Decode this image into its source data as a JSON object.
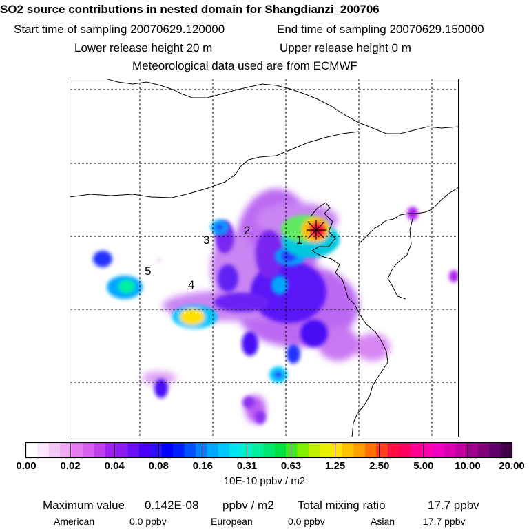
{
  "header": {
    "title": "SO2 source contributions in nested domain for Shangdianzi_200706",
    "start_time": "Start time of sampling 20070629.120000",
    "end_time": "End time of sampling 20070629.150000",
    "lower_height": "Lower release height   20 m",
    "upper_height": "Upper release height    0 m",
    "met_source": "Meteorological data used are from ECMWF"
  },
  "map": {
    "station_marker": "station-marker-icon",
    "source_labels": [
      "1",
      "2",
      "3",
      "4",
      "5"
    ]
  },
  "colorbar": {
    "ticks": [
      "0.00",
      "0.02",
      "0.04",
      "0.08",
      "0.16",
      "0.31",
      "0.63",
      "1.25",
      "2.50",
      "5.00",
      "10.00",
      "20.00"
    ],
    "colors": [
      "#ffffff",
      "#fbe6fb",
      "#f4c8f6",
      "#eeaaf2",
      "#e47cf0",
      "#d860f0",
      "#c040f0",
      "#a020f0",
      "#8a1cf2",
      "#6a10f2",
      "#4a00f8",
      "#3010f8",
      "#0000ff",
      "#0020ff",
      "#0050ff",
      "#0080ff",
      "#00a6ff",
      "#00c8ff",
      "#00e6f0",
      "#00f0c8",
      "#00f0a0",
      "#00e870",
      "#00e040",
      "#40e820",
      "#80f000",
      "#c0f000",
      "#e8f000",
      "#ffe000",
      "#ffc000",
      "#ffa000",
      "#ff7000",
      "#ff4020",
      "#ff1040",
      "#ff0060",
      "#ff0090",
      "#ff00b0",
      "#f000c0",
      "#d800b0",
      "#c000a0",
      "#a0008c",
      "#80007a",
      "#600068",
      "#400048"
    ],
    "unit": "10E-10 ppbv / m2"
  },
  "footer": {
    "max_label": "Maximum value",
    "max_value": "0.142E-08",
    "max_unit": "ppbv / m2",
    "total_label": "Total mixing ratio",
    "total_value": "17.7 ppbv",
    "american_label": "American",
    "american_value": "0.0 ppbv",
    "european_label": "European",
    "european_value": "0.0 ppbv",
    "asian_label": "Asian",
    "asian_value": "17.7 ppbv"
  }
}
